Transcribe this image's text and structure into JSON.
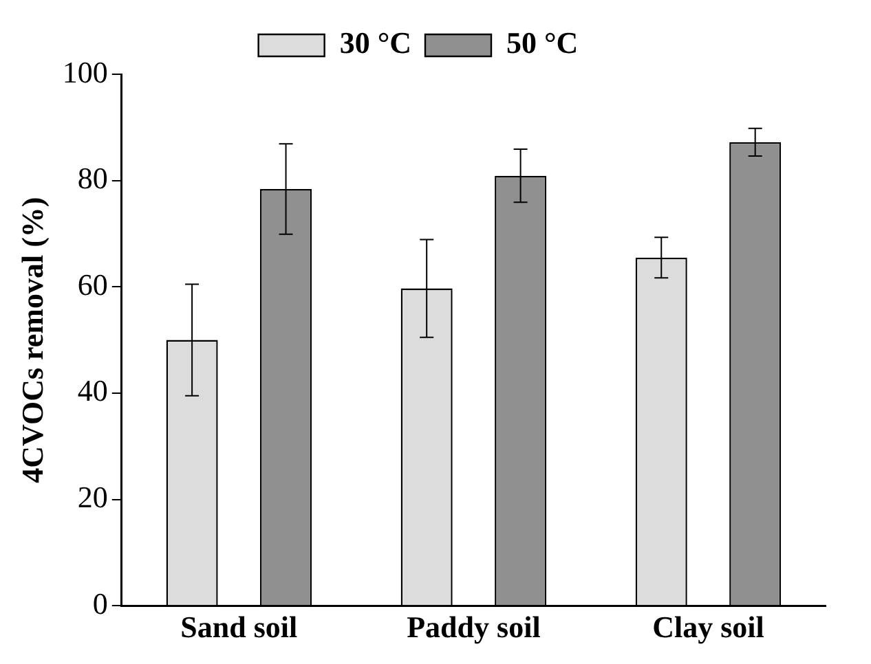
{
  "chart_data": {
    "type": "bar",
    "ylabel": "4CVOCs removal (%)",
    "categories": [
      "Sand soil",
      "Paddy soil",
      "Clay soil"
    ],
    "series": [
      {
        "name": "30 °C",
        "color": "#dcdcdc",
        "values": [
          50,
          59.7,
          65.5
        ],
        "errors": [
          10.5,
          9.2,
          3.8
        ]
      },
      {
        "name": "50 °C",
        "color": "#909090",
        "values": [
          78.4,
          80.9,
          87.2
        ],
        "errors": [
          8.5,
          5,
          2.6
        ]
      }
    ],
    "ylim": [
      0,
      100
    ],
    "yticks": [
      0,
      20,
      40,
      60,
      80,
      100
    ],
    "grid": false,
    "legend": "top"
  }
}
